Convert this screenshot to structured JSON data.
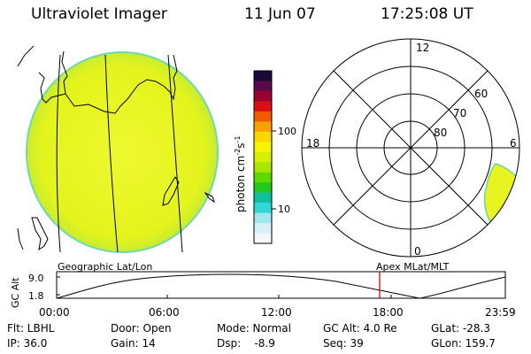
{
  "header": {
    "title": "Ultraviolet Imager",
    "date": "11 Jun 07",
    "time": "17:25:08 UT"
  },
  "colorbar": {
    "ticks": [
      "100",
      "10"
    ],
    "unit_label": "photon cm",
    "unit_sup1": "-2",
    "unit_s": "s",
    "unit_sup2": "-1",
    "colors": [
      "#1a0a3a",
      "#5a0a4a",
      "#9a0030",
      "#d81010",
      "#f05a00",
      "#f8a000",
      "#f8d800",
      "#f8f400",
      "#d8f000",
      "#a8e800",
      "#60d800",
      "#20c820",
      "#10c0a0",
      "#30d8d8",
      "#a0e8f0",
      "#d8f0f8",
      "#f4f8fc"
    ]
  },
  "geo_panel": {
    "label": "Geographic Lat/Lon",
    "disk_color": "#e4f41c",
    "edge_color": "#70d8b0"
  },
  "polar_panel": {
    "label": "Apex MLat/MLT",
    "mlt_labels": {
      "top": "12",
      "bottom": "0",
      "left": "18",
      "right": "6"
    },
    "lat_labels": [
      "60",
      "70",
      "80"
    ]
  },
  "altitude_plot": {
    "ylabel": "GC Alt",
    "yticks": [
      "9.0",
      "1.8"
    ],
    "xticks": [
      "00:00",
      "06:00",
      "12:00",
      "18:00",
      "23:59"
    ],
    "marker_color": "#e00000"
  },
  "info": {
    "filter": "Flt: LBHL",
    "ip": "IP: 36.0",
    "door": "Door: Open",
    "gain": "Gain: 14",
    "mode": "Mode: Normal",
    "dsp": "Dsp:    -8.9",
    "gc_alt": "GC Alt: 4.0 Re",
    "seq": "Seq: 39",
    "glat": "GLat: -28.3",
    "glon": "GLon: 159.7"
  }
}
